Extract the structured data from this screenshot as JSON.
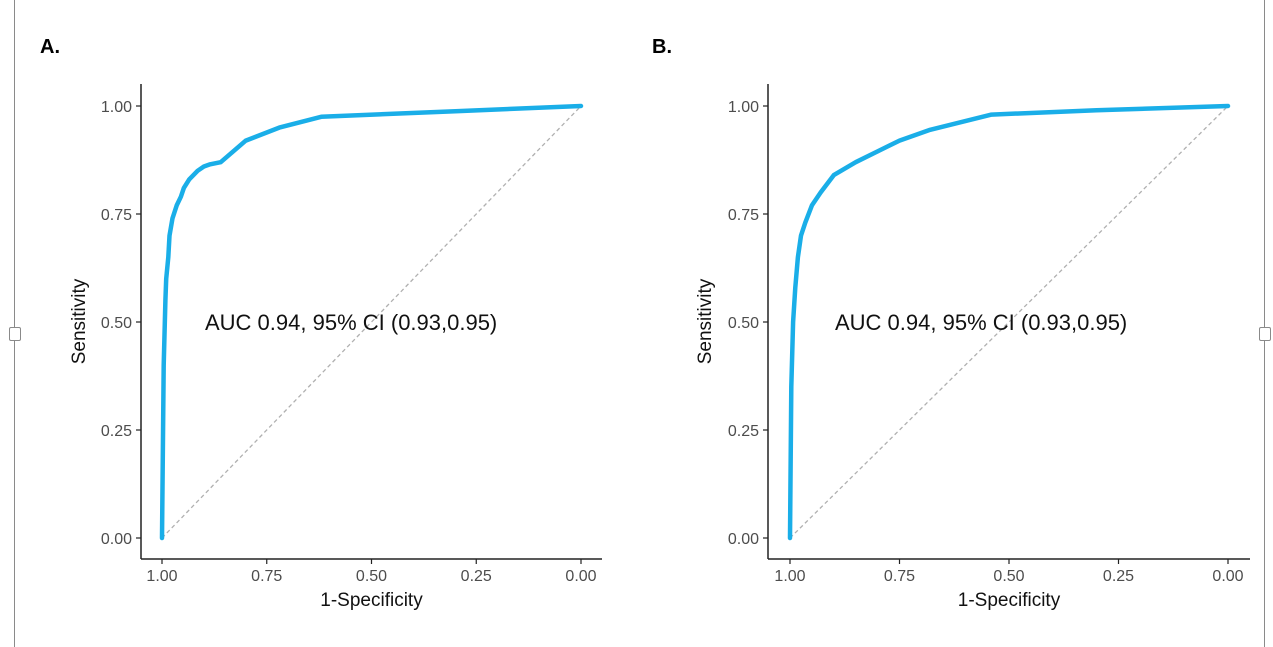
{
  "panels": [
    {
      "label": "A."
    },
    {
      "label": "B."
    }
  ],
  "chart_data": [
    {
      "type": "line",
      "panel": "A.",
      "xlabel": "1-Specificity",
      "ylabel": "Sensitivity",
      "x_ticks": [
        "1.00",
        "0.75",
        "0.50",
        "0.25",
        "0.00"
      ],
      "y_ticks": [
        "0.00",
        "0.25",
        "0.50",
        "0.75",
        "1.00"
      ],
      "xlim": [
        1.0,
        0.0
      ],
      "x_reversed": true,
      "ylim": [
        0.0,
        1.0
      ],
      "grid": false,
      "annotation": "AUC 0.94, 95% CI (0.93,0.95)",
      "series": [
        {
          "color": "#1aaee8",
          "x": [
            1.0,
            0.996,
            0.992,
            0.99,
            0.985,
            0.982,
            0.975,
            0.965,
            0.955,
            0.948,
            0.935,
            0.915,
            0.9,
            0.885,
            0.86,
            0.8,
            0.72,
            0.62,
            0.3,
            0.0
          ],
          "y": [
            0.0,
            0.4,
            0.55,
            0.6,
            0.65,
            0.7,
            0.74,
            0.77,
            0.79,
            0.81,
            0.83,
            0.85,
            0.86,
            0.865,
            0.87,
            0.92,
            0.95,
            0.975,
            0.988,
            1.0
          ]
        }
      ],
      "reference_line": {
        "x": [
          1.0,
          0.0
        ],
        "y": [
          0.0,
          1.0
        ],
        "color": "#b0b0b0",
        "style": "dashed"
      }
    },
    {
      "type": "line",
      "panel": "B.",
      "xlabel": "1-Specificity",
      "ylabel": "Sensitivity",
      "x_ticks": [
        "1.00",
        "0.75",
        "0.50",
        "0.25",
        "0.00"
      ],
      "y_ticks": [
        "0.00",
        "0.25",
        "0.50",
        "0.75",
        "1.00"
      ],
      "xlim": [
        1.0,
        0.0
      ],
      "x_reversed": true,
      "ylim": [
        0.0,
        1.0
      ],
      "grid": false,
      "annotation": "AUC 0.94, 95% CI (0.93,0.95)",
      "series": [
        {
          "color": "#1aaee8",
          "x": [
            1.0,
            0.997,
            0.993,
            0.988,
            0.982,
            0.975,
            0.965,
            0.95,
            0.93,
            0.9,
            0.85,
            0.8,
            0.75,
            0.68,
            0.54,
            0.3,
            0.0
          ],
          "y": [
            0.0,
            0.35,
            0.5,
            0.58,
            0.65,
            0.7,
            0.73,
            0.77,
            0.8,
            0.84,
            0.87,
            0.895,
            0.92,
            0.945,
            0.98,
            0.99,
            1.0
          ]
        }
      ],
      "reference_line": {
        "x": [
          1.0,
          0.0
        ],
        "y": [
          0.0,
          1.0
        ],
        "color": "#b0b0b0",
        "style": "dashed"
      }
    }
  ]
}
